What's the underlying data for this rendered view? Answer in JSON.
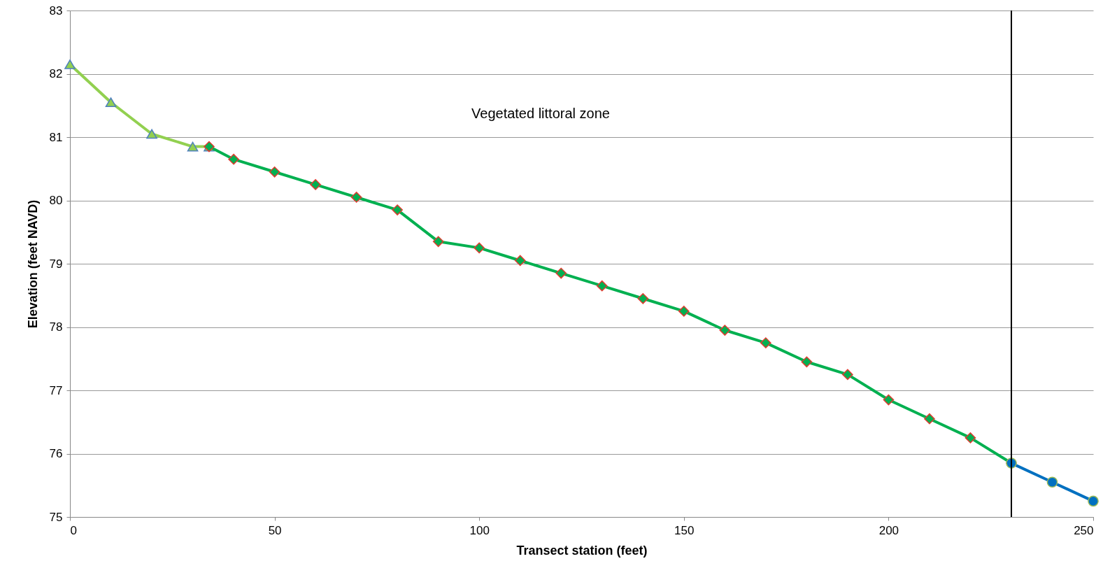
{
  "chart_data": {
    "type": "line",
    "xlabel": "Transect station (feet)",
    "ylabel": "Elevation (feet NAVD)",
    "xlim": [
      0,
      250
    ],
    "xticks": [
      0,
      50,
      100,
      150,
      200,
      250
    ],
    "ylim": [
      75,
      83
    ],
    "yticks": [
      75,
      76,
      77,
      78,
      79,
      80,
      81,
      82,
      83
    ],
    "grid": "y",
    "series": [
      {
        "color": "#92d050",
        "marker": "triangle",
        "x": [
          0,
          10,
          20,
          30,
          34
        ],
        "values": [
          82.15,
          81.55,
          81.05,
          80.85,
          80.85
        ]
      },
      {
        "color": "#00b050",
        "marker": "diamond",
        "x": [
          34,
          40,
          50,
          60,
          70,
          80,
          90,
          100,
          110,
          120,
          130,
          140,
          150,
          160,
          170,
          180,
          190,
          200,
          210,
          220,
          230
        ],
        "values": [
          80.85,
          80.65,
          80.45,
          80.25,
          80.05,
          79.85,
          79.35,
          79.25,
          79.05,
          78.85,
          78.65,
          78.45,
          78.25,
          77.95,
          77.75,
          77.45,
          77.25,
          76.85,
          76.55,
          76.25,
          75.85
        ]
      },
      {
        "color": "#0070c0",
        "marker": "circle",
        "x": [
          230,
          240,
          250
        ],
        "values": [
          75.85,
          75.55,
          75.25
        ]
      }
    ],
    "ref_lines": [
      {
        "axis": "x",
        "value": 230,
        "color": "#000000"
      }
    ],
    "annotations": [
      "Vegetated littoral zone"
    ]
  }
}
